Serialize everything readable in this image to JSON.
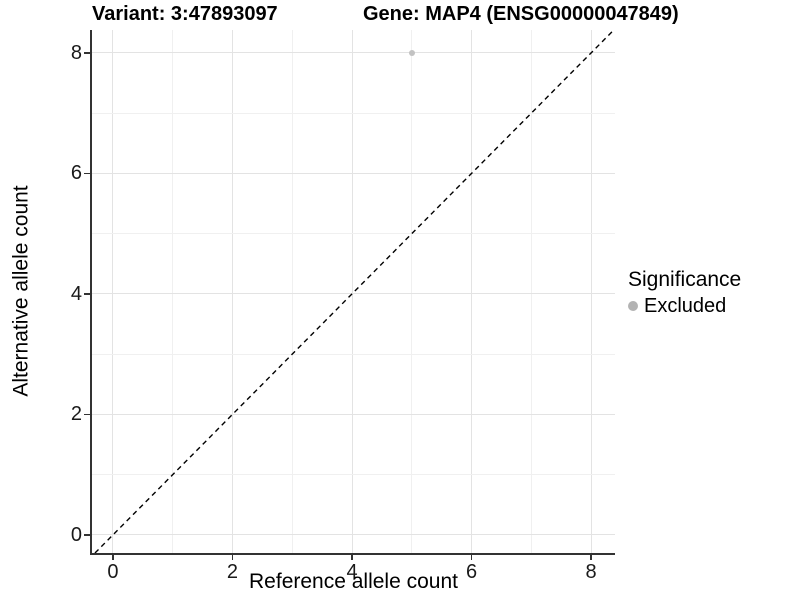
{
  "header": {
    "variant_title": "Variant: 3:47893097",
    "gene_title": "Gene: MAP4 (ENSG00000047849)"
  },
  "chart_data": {
    "type": "scatter",
    "titles": [
      "Variant: 3:47893097",
      "Gene: MAP4 (ENSG00000047849)"
    ],
    "xlabel": "Reference allele count",
    "ylabel": "Alternative allele count",
    "xlim": [
      -0.35,
      8.4
    ],
    "ylim": [
      -0.3,
      8.38
    ],
    "x_ticks": [
      0,
      2,
      4,
      6,
      8
    ],
    "y_ticks": [
      0,
      2,
      4,
      6,
      8
    ],
    "minor_grid_step": 1,
    "grid": "on",
    "series": [
      {
        "name": "Excluded",
        "color": "#c2c2c2",
        "points": [
          {
            "x": 5,
            "y": 8
          }
        ]
      }
    ],
    "identity_line": {
      "style": "dashed",
      "color": "#000000",
      "from": -0.3,
      "to": 8.38
    },
    "legend": {
      "title": "Significance",
      "position": "right",
      "entries": [
        {
          "label": "Excluded",
          "color": "#b3b3b3"
        }
      ]
    }
  },
  "colors": {
    "grid_major": "#e3e3e3",
    "grid_minor": "#f0f0f0",
    "axis_line": "#333333",
    "tick_label": "#1a1a1a"
  }
}
